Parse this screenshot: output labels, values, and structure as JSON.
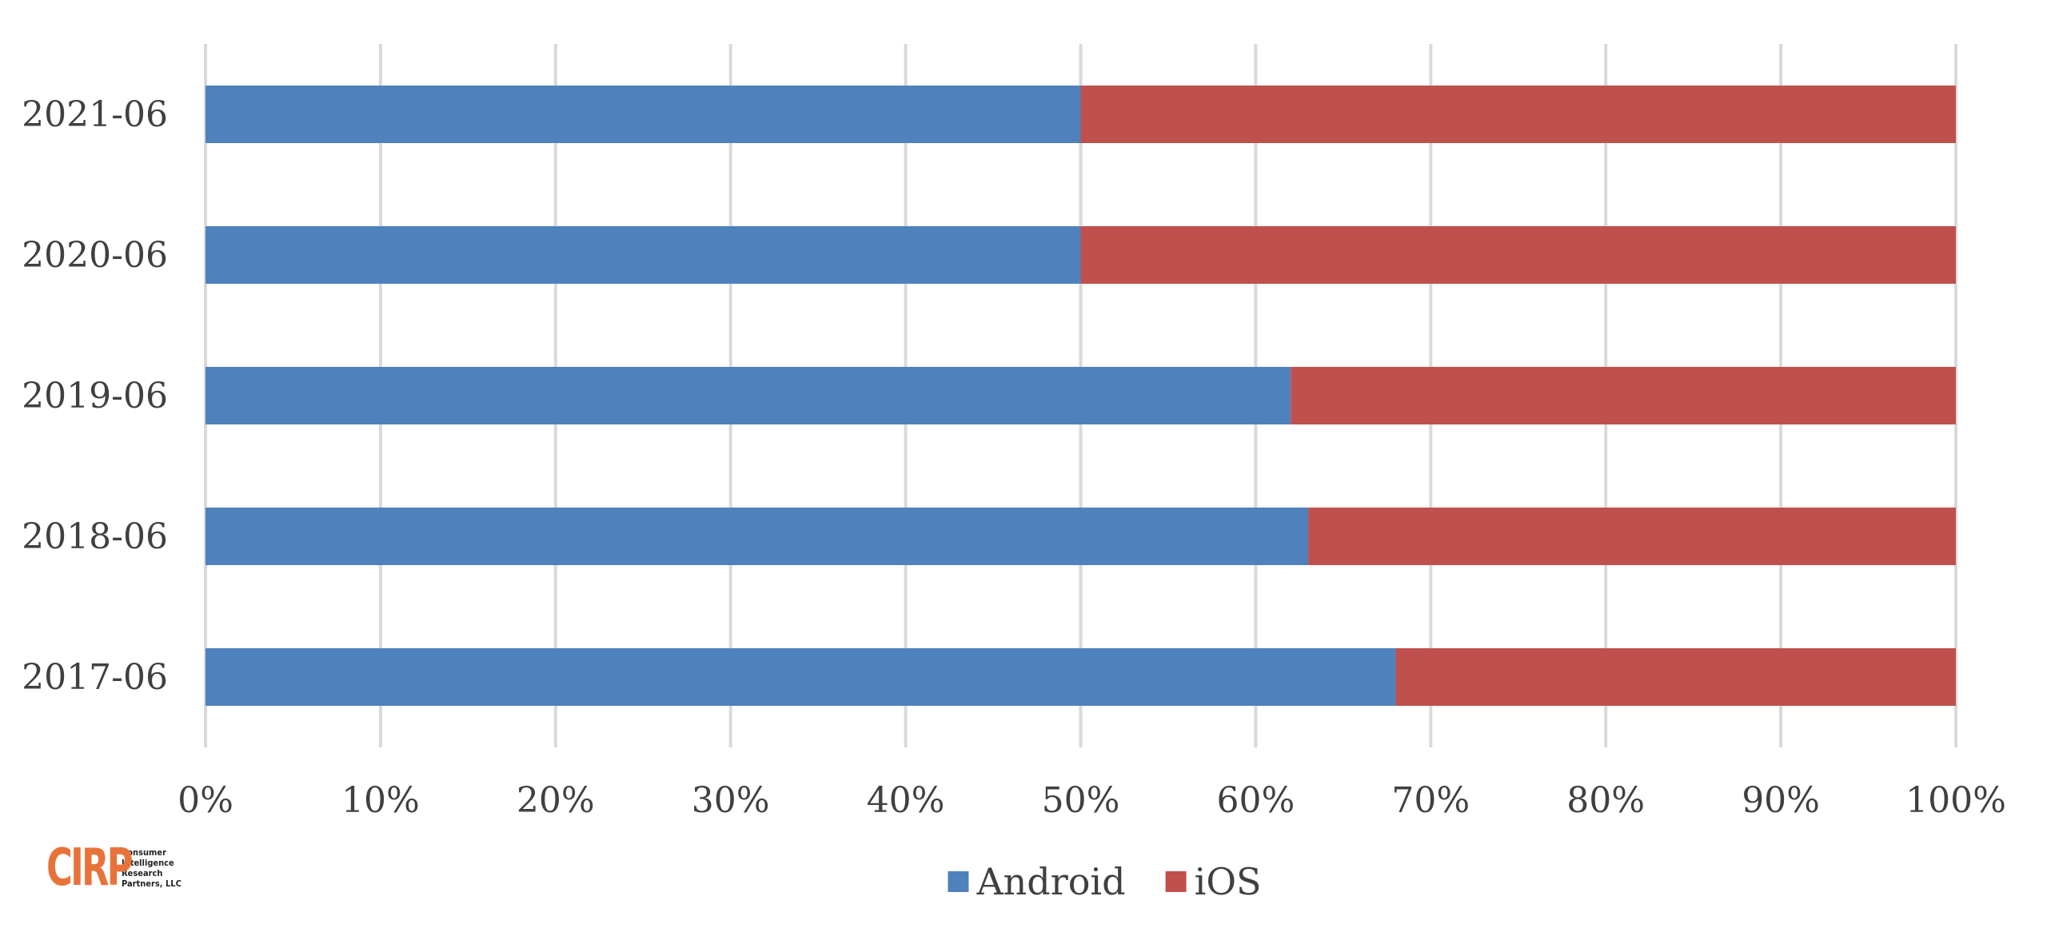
{
  "chart_data": {
    "type": "bar",
    "orientation": "horizontal",
    "stacked": "percent",
    "categories": [
      "2021-06",
      "2020-06",
      "2019-06",
      "2018-06",
      "2017-06"
    ],
    "series": [
      {
        "name": "Android",
        "color": "#4f81bd",
        "values": [
          50,
          50,
          62,
          63,
          68
        ]
      },
      {
        "name": "iOS",
        "color": "#c0504d",
        "values": [
          50,
          50,
          38,
          37,
          32
        ]
      }
    ],
    "x_ticks": [
      "0%",
      "10%",
      "20%",
      "30%",
      "40%",
      "50%",
      "60%",
      "70%",
      "80%",
      "90%",
      "100%"
    ],
    "xlim": [
      0,
      100
    ],
    "grid": true,
    "legend_position": "bottom",
    "title": "",
    "xlabel": "",
    "ylabel": ""
  },
  "logo": {
    "mark": "CIRP",
    "lines": [
      "Consumer",
      "Intelligence",
      "Research",
      "Partners, LLC"
    ],
    "color": "#e8733a"
  }
}
